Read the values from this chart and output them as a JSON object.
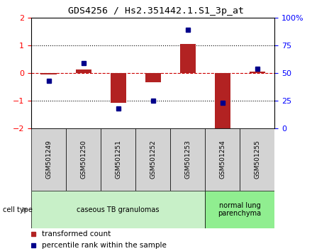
{
  "title": "GDS4256 / Hs2.351442.1.S1_3p_at",
  "samples": [
    "GSM501249",
    "GSM501250",
    "GSM501251",
    "GSM501252",
    "GSM501253",
    "GSM501254",
    "GSM501255"
  ],
  "transformed_counts": [
    -0.05,
    0.12,
    -1.1,
    -0.35,
    1.05,
    -2.0,
    0.05
  ],
  "percentile_ranks": [
    -0.3,
    0.35,
    -1.3,
    -1.0,
    1.55,
    -1.1,
    0.15
  ],
  "ylim_left": [
    -2,
    2
  ],
  "ylim_right": [
    0,
    100
  ],
  "yticks_left": [
    -2,
    -1,
    0,
    1,
    2
  ],
  "yticks_right": [
    0,
    25,
    50,
    75,
    100
  ],
  "ytick_labels_right": [
    "0",
    "25",
    "50",
    "75",
    "100%"
  ],
  "bar_color": "#b22222",
  "dot_color": "#00008b",
  "hline_color": "#cc0000",
  "grid_color": "#000000",
  "cell_groups": [
    {
      "label": "caseous TB granulomas",
      "samples_idx": [
        0,
        1,
        2,
        3,
        4
      ],
      "color": "#c8f0c8"
    },
    {
      "label": "normal lung\nparenchyma",
      "samples_idx": [
        5,
        6
      ],
      "color": "#90ee90"
    }
  ],
  "cell_type_label": "cell type",
  "legend_items": [
    {
      "label": "transformed count",
      "color": "#b22222"
    },
    {
      "label": "percentile rank within the sample",
      "color": "#00008b"
    }
  ],
  "bg_color": "#ffffff",
  "plot_bg_color": "#ffffff",
  "sample_bg_color": "#d3d3d3"
}
